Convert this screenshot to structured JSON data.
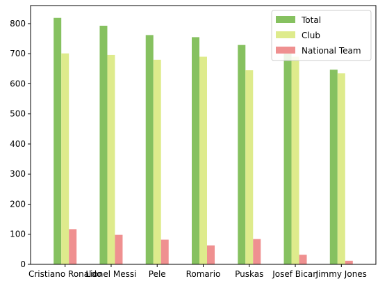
{
  "chart_data": {
    "type": "bar",
    "title": "",
    "xlabel": "",
    "ylabel": "",
    "categories": [
      "Cristiano Ronaldo",
      "Lionel Messi",
      "Pele",
      "Romario",
      "Puskas",
      "Josef Bican",
      "Jimmy Jones"
    ],
    "series": [
      {
        "name": "Total",
        "color": "#86c160",
        "values": [
          819,
          793,
          762,
          755,
          729,
          722,
          647
        ]
      },
      {
        "name": "Club",
        "color": "#deeb8c",
        "values": [
          701,
          696,
          680,
          690,
          645,
          690,
          635
        ]
      },
      {
        "name": "National Team",
        "color": "#ef9090",
        "values": [
          117,
          98,
          82,
          63,
          84,
          32,
          12
        ]
      }
    ],
    "yticks": [
      0,
      100,
      200,
      300,
      400,
      500,
      600,
      700,
      800
    ],
    "ylim": [
      0,
      860
    ],
    "grid": false,
    "legend_position": "top-right"
  }
}
